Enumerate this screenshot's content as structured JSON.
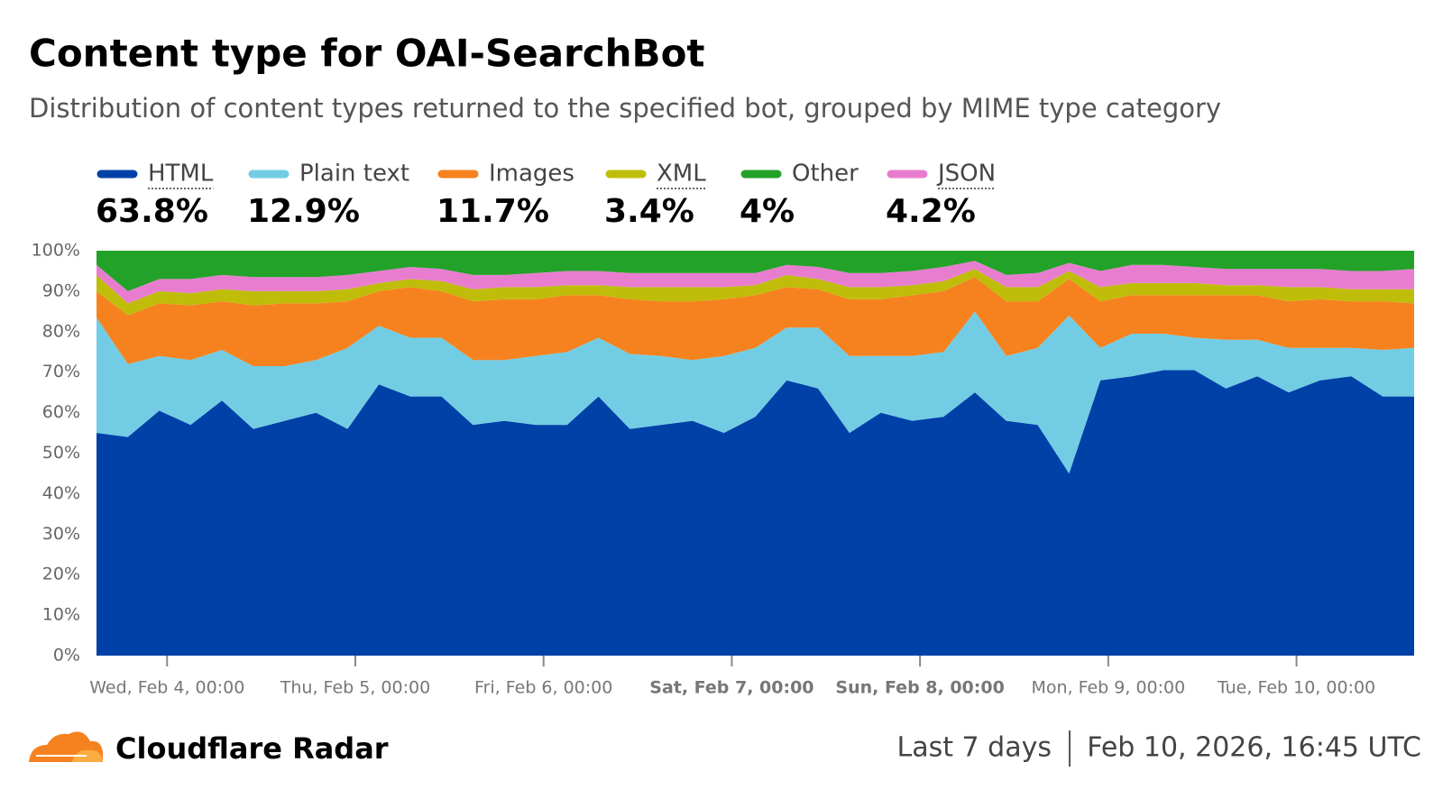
{
  "chart_data": {
    "type": "stacked_area",
    "title": "Content type for OAI-SearchBot",
    "subtitle": "Distribution of content types returned to the specified bot, grouped by MIME type category",
    "x": [
      "Feb 3, 15:00",
      "Feb 3, 19:00",
      "Feb 3, 23:00",
      "Feb 4, 03:00",
      "Feb 4, 07:00",
      "Feb 4, 11:00",
      "Feb 4, 15:00",
      "Feb 4, 19:00",
      "Feb 4, 23:00",
      "Feb 5, 03:00",
      "Feb 5, 07:00",
      "Feb 5, 11:00",
      "Feb 5, 15:00",
      "Feb 5, 19:00",
      "Feb 5, 23:00",
      "Feb 6, 03:00",
      "Feb 6, 07:00",
      "Feb 6, 11:00",
      "Feb 6, 15:00",
      "Feb 6, 19:00",
      "Feb 6, 23:00",
      "Feb 7, 03:00",
      "Feb 7, 07:00",
      "Feb 7, 11:00",
      "Feb 7, 15:00",
      "Feb 7, 19:00",
      "Feb 7, 23:00",
      "Feb 8, 03:00",
      "Feb 8, 07:00",
      "Feb 8, 11:00",
      "Feb 8, 15:00",
      "Feb 8, 19:00",
      "Feb 8, 23:00",
      "Feb 9, 03:00",
      "Feb 9, 07:00",
      "Feb 9, 11:00",
      "Feb 9, 15:00",
      "Feb 9, 19:00",
      "Feb 9, 23:00",
      "Feb 10, 03:00",
      "Feb 10, 07:00",
      "Feb 10, 11:00",
      "Feb 10, 15:00"
    ],
    "xlim": [
      "Feb 3, 15:00",
      "Feb 10, 15:00"
    ],
    "xticks": [
      {
        "value": "Feb 4, 00:00",
        "label": "Wed, Feb 4, 00:00"
      },
      {
        "value": "Feb 5, 00:00",
        "label": "Thu, Feb 5, 00:00"
      },
      {
        "value": "Feb 6, 00:00",
        "label": "Fri, Feb 6, 00:00"
      },
      {
        "value": "Feb 7, 00:00",
        "label": "Sat, Feb 7, 00:00"
      },
      {
        "value": "Feb 8, 00:00",
        "label": "Sun, Feb 8, 00:00"
      },
      {
        "value": "Feb 9, 00:00",
        "label": "Mon, Feb 9, 00:00"
      },
      {
        "value": "Feb 10, 00:00",
        "label": "Tue, Feb 10, 00:00"
      }
    ],
    "ylim": [
      0,
      100
    ],
    "yticks": [
      {
        "value": 0,
        "label": "0%"
      },
      {
        "value": 10,
        "label": "10%"
      },
      {
        "value": 20,
        "label": "20%"
      },
      {
        "value": 30,
        "label": "30%"
      },
      {
        "value": 40,
        "label": "40%"
      },
      {
        "value": 50,
        "label": "50%"
      },
      {
        "value": 60,
        "label": "60%"
      },
      {
        "value": 70,
        "label": "70%"
      },
      {
        "value": 80,
        "label": "80%"
      },
      {
        "value": 90,
        "label": "90%"
      },
      {
        "value": 100,
        "label": "100%"
      }
    ],
    "stack_order": [
      0,
      1,
      2,
      3,
      5,
      4
    ],
    "series": [
      {
        "name": "HTML",
        "color": "#0041a8",
        "dotted": true,
        "summary_value": 63.8,
        "summary_label": "63.8%",
        "values": [
          55,
          54,
          60.5,
          57,
          63,
          56,
          58,
          60,
          56,
          67,
          64,
          64,
          57,
          58,
          57,
          57,
          64,
          56,
          57,
          58,
          55,
          59,
          68,
          66,
          55,
          60,
          58,
          59,
          65,
          58,
          57,
          45,
          68,
          69,
          70.5,
          70.5,
          66,
          69,
          65,
          68,
          69,
          64,
          64
        ]
      },
      {
        "name": "Plain text",
        "color": "#72cde4",
        "dotted": false,
        "summary_value": 12.9,
        "summary_label": "12.9%",
        "values": [
          28.5,
          18,
          13.5,
          16,
          12.5,
          15.5,
          13.5,
          13,
          20,
          14.5,
          14.5,
          14.5,
          16,
          15,
          17,
          18,
          14.5,
          18.5,
          17,
          15,
          19,
          17,
          13,
          15,
          19,
          14,
          16,
          16,
          20,
          16,
          19,
          39,
          8,
          10.5,
          9,
          8,
          12,
          9,
          11,
          8,
          7,
          11.5,
          12
        ]
      },
      {
        "name": "Images",
        "color": "#f6821f",
        "dotted": false,
        "summary_value": 11.7,
        "summary_label": "11.7%",
        "values": [
          6.5,
          12,
          13,
          13.5,
          12,
          15,
          15.5,
          14,
          11.5,
          8.5,
          12.5,
          11.5,
          14.5,
          15,
          14,
          14,
          10.5,
          13.5,
          13.5,
          14.5,
          14,
          13,
          10,
          9.5,
          14,
          14,
          15,
          15,
          8.5,
          13.5,
          11.5,
          9,
          11.5,
          9.5,
          9.5,
          10.5,
          11,
          11,
          11.5,
          12,
          11.5,
          12,
          11
        ]
      },
      {
        "name": "XML",
        "color": "#bfbd0a",
        "dotted": true,
        "summary_value": 3.4,
        "summary_label": "3.4%",
        "values": [
          4,
          3,
          3,
          3,
          3,
          3.5,
          3,
          3,
          3,
          2,
          2,
          2.5,
          3,
          3,
          3,
          2.5,
          2.5,
          3,
          3.5,
          3.5,
          3,
          2.5,
          3,
          2.5,
          3,
          3,
          2.5,
          2.5,
          2,
          3.5,
          3.5,
          2,
          3.5,
          3,
          3,
          3,
          2.5,
          2.5,
          3.5,
          3,
          3,
          3,
          3.5
        ]
      },
      {
        "name": "Other",
        "color": "#22a228",
        "dotted": false,
        "summary_value": 4,
        "summary_label": "4%",
        "values": [
          3.5,
          10,
          7,
          7,
          6,
          6.5,
          6.5,
          6.5,
          6,
          5,
          4,
          4.5,
          6,
          6,
          5.5,
          5,
          5,
          5.5,
          5.5,
          5.5,
          5.5,
          5.5,
          3.5,
          4,
          5.5,
          5.5,
          5,
          4,
          2.5,
          6,
          5.5,
          3,
          5,
          3.5,
          3.5,
          4,
          4.5,
          4.5,
          4.5,
          4.5,
          5,
          5,
          4.5
        ]
      },
      {
        "name": "JSON",
        "color": "#e87dcf",
        "dotted": true,
        "summary_value": 4.2,
        "summary_label": "4.2%",
        "values": [
          2.5,
          3,
          3,
          3.5,
          3.5,
          3.5,
          3.5,
          3.5,
          3.5,
          3,
          3,
          3,
          3.5,
          3,
          3.5,
          3.5,
          3.5,
          3.5,
          3.5,
          3.5,
          3.5,
          3,
          2.5,
          3,
          3.5,
          3.5,
          3.5,
          3.5,
          2,
          3,
          3.5,
          2,
          4,
          4.5,
          4.5,
          4,
          4,
          4,
          4.5,
          4.5,
          4.5,
          4.5,
          5
        ]
      }
    ],
    "footer": {
      "brand": "Cloudflare Radar",
      "range": "Last 7 days",
      "timestamp": "Feb 10, 2026, 16:45 UTC"
    }
  }
}
